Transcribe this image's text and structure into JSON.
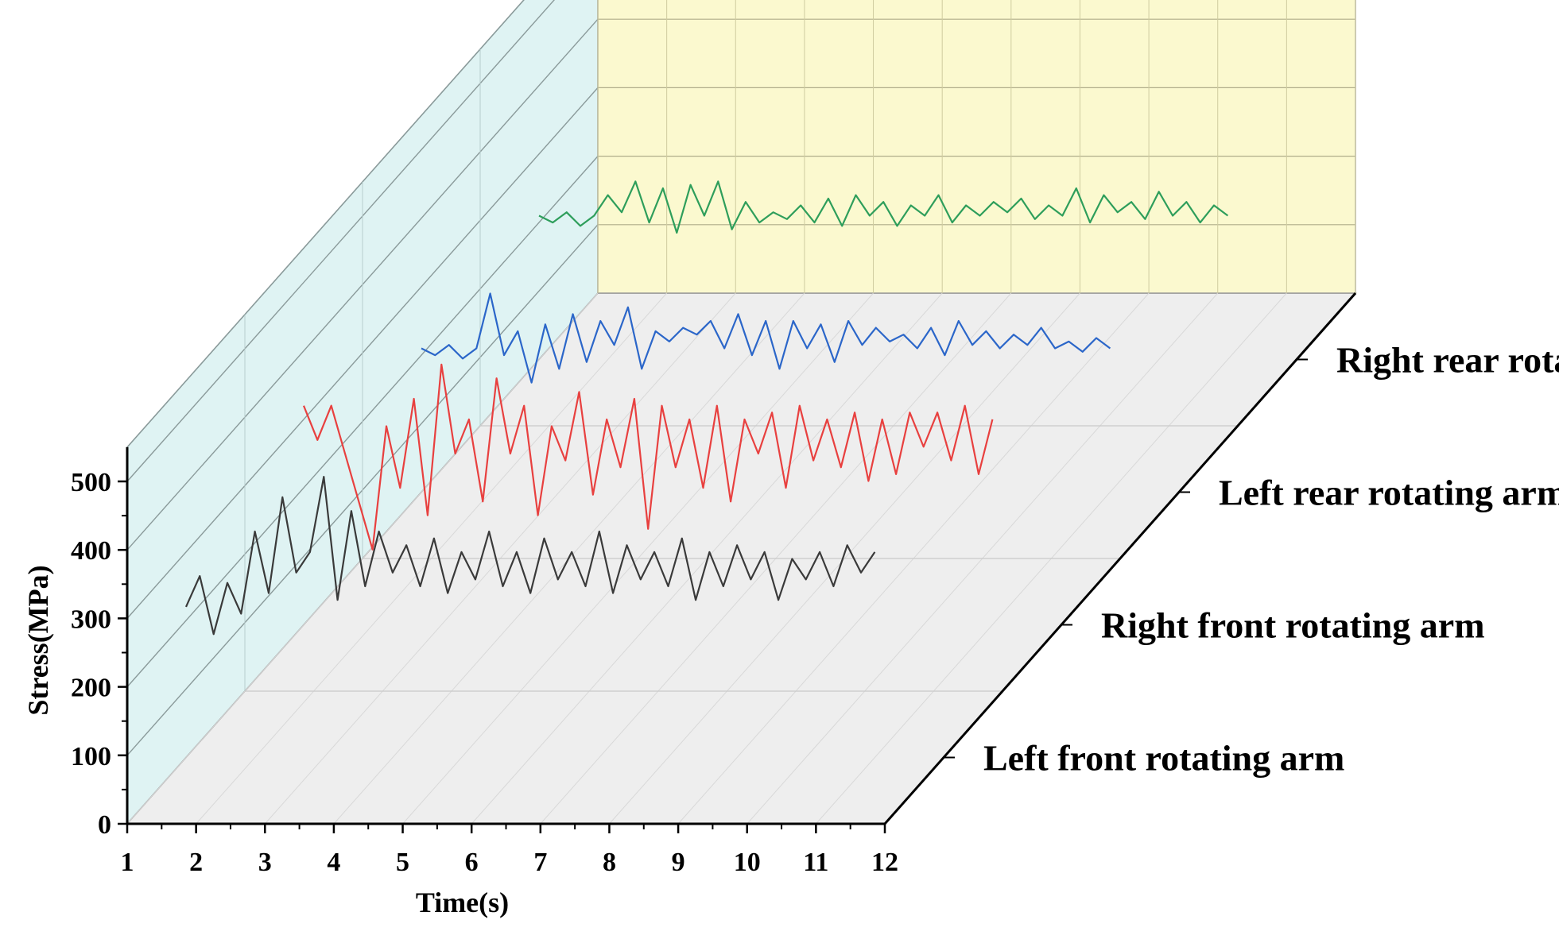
{
  "chart_data": {
    "type": "line",
    "style": "3d-waterfall",
    "xlabel": "Time(s)",
    "ylabel": "Stress(MPa)",
    "xlim": [
      1,
      12
    ],
    "ylim": [
      0,
      550
    ],
    "x_ticks": [
      "1",
      "2",
      "3",
      "4",
      "5",
      "6",
      "7",
      "8",
      "9",
      "10",
      "11",
      "12"
    ],
    "y_ticks": [
      "0",
      "100",
      "200",
      "300",
      "400",
      "500"
    ],
    "colors": {
      "back_wall": "#fbf9cf",
      "side_wall": "#dff3f3",
      "floor": "#eeeeee"
    },
    "series": [
      {
        "name": "Left front rotating arm",
        "color": "#3a3a3a",
        "x": [
          1.0,
          1.2,
          1.4,
          1.6,
          1.8,
          2.0,
          2.2,
          2.4,
          2.6,
          2.8,
          3.0,
          3.2,
          3.4,
          3.6,
          3.8,
          4.0,
          4.2,
          4.4,
          4.6,
          4.8,
          5.0,
          5.2,
          5.4,
          5.6,
          5.8,
          6.0,
          6.2,
          6.4,
          6.6,
          6.8,
          7.0,
          7.2,
          7.4,
          7.6,
          7.8,
          8.0,
          8.2,
          8.4,
          8.6,
          8.8,
          9.0,
          9.2,
          9.4,
          9.6,
          9.8,
          10.0,
          10.2,
          10.4,
          10.6,
          10.8,
          11.0
        ],
        "y": [
          220,
          265,
          180,
          255,
          210,
          330,
          240,
          380,
          270,
          300,
          410,
          230,
          360,
          250,
          330,
          270,
          310,
          250,
          320,
          240,
          300,
          260,
          330,
          250,
          300,
          240,
          320,
          260,
          300,
          250,
          330,
          240,
          310,
          260,
          300,
          250,
          320,
          230,
          300,
          250,
          310,
          260,
          300,
          230,
          290,
          260,
          300,
          250,
          310,
          270,
          300
        ]
      },
      {
        "name": "Right front rotating arm",
        "color": "#e8403f",
        "x": [
          1.0,
          1.2,
          1.4,
          1.6,
          1.8,
          2.0,
          2.2,
          2.4,
          2.6,
          2.8,
          3.0,
          3.2,
          3.4,
          3.6,
          3.8,
          4.0,
          4.2,
          4.4,
          4.6,
          4.8,
          5.0,
          5.2,
          5.4,
          5.6,
          5.8,
          6.0,
          6.2,
          6.4,
          6.6,
          6.8,
          7.0,
          7.2,
          7.4,
          7.6,
          7.8,
          8.0,
          8.2,
          8.4,
          8.6,
          8.8,
          9.0,
          9.2,
          9.4,
          9.6,
          9.8,
          10.0,
          10.2,
          10.4,
          10.6,
          10.8,
          11.0
        ],
        "y": [
          320,
          270,
          320,
          250,
          180,
          110,
          290,
          200,
          330,
          160,
          380,
          250,
          300,
          180,
          360,
          250,
          320,
          160,
          290,
          240,
          340,
          190,
          300,
          230,
          330,
          140,
          320,
          230,
          300,
          200,
          320,
          180,
          300,
          250,
          310,
          200,
          320,
          240,
          300,
          230,
          310,
          210,
          300,
          220,
          310,
          260,
          310,
          240,
          320,
          220,
          300
        ]
      },
      {
        "name": "Left rear rotating arm",
        "color": "#2b66c9",
        "x": [
          1.0,
          1.2,
          1.4,
          1.6,
          1.8,
          2.0,
          2.2,
          2.4,
          2.6,
          2.8,
          3.0,
          3.2,
          3.4,
          3.6,
          3.8,
          4.0,
          4.2,
          4.4,
          4.6,
          4.8,
          5.0,
          5.2,
          5.4,
          5.6,
          5.8,
          6.0,
          6.2,
          6.4,
          6.6,
          6.8,
          7.0,
          7.2,
          7.4,
          7.6,
          7.8,
          8.0,
          8.2,
          8.4,
          8.6,
          8.8,
          9.0,
          9.2,
          9.4,
          9.6,
          9.8,
          10.0,
          10.2,
          10.4,
          10.6,
          10.8,
          11.0
        ],
        "y": [
          210,
          200,
          215,
          195,
          210,
          290,
          200,
          235,
          160,
          245,
          180,
          260,
          190,
          250,
          215,
          270,
          180,
          235,
          220,
          240,
          230,
          250,
          210,
          260,
          200,
          250,
          180,
          250,
          210,
          245,
          190,
          250,
          215,
          240,
          220,
          230,
          210,
          240,
          200,
          250,
          215,
          235,
          210,
          230,
          215,
          240,
          210,
          220,
          205,
          225,
          210
        ]
      },
      {
        "name": "Right rear rotating arm",
        "color": "#2e9e5b",
        "x": [
          1.0,
          1.2,
          1.4,
          1.6,
          1.8,
          2.0,
          2.2,
          2.4,
          2.6,
          2.8,
          3.0,
          3.2,
          3.4,
          3.6,
          3.8,
          4.0,
          4.2,
          4.4,
          4.6,
          4.8,
          5.0,
          5.2,
          5.4,
          5.6,
          5.8,
          6.0,
          6.2,
          6.4,
          6.6,
          6.8,
          7.0,
          7.2,
          7.4,
          7.6,
          7.8,
          8.0,
          8.2,
          8.4,
          8.6,
          8.8,
          9.0,
          9.2,
          9.4,
          9.6,
          9.8,
          10.0,
          10.2,
          10.4,
          10.6,
          10.8,
          11.0
        ],
        "y": [
          210,
          200,
          215,
          195,
          210,
          240,
          215,
          260,
          200,
          250,
          185,
          255,
          210,
          260,
          190,
          230,
          200,
          215,
          205,
          225,
          200,
          235,
          195,
          240,
          210,
          230,
          195,
          225,
          210,
          240,
          200,
          225,
          210,
          230,
          215,
          235,
          205,
          225,
          210,
          250,
          200,
          240,
          215,
          230,
          205,
          245,
          210,
          230,
          200,
          225,
          210
        ]
      }
    ]
  }
}
